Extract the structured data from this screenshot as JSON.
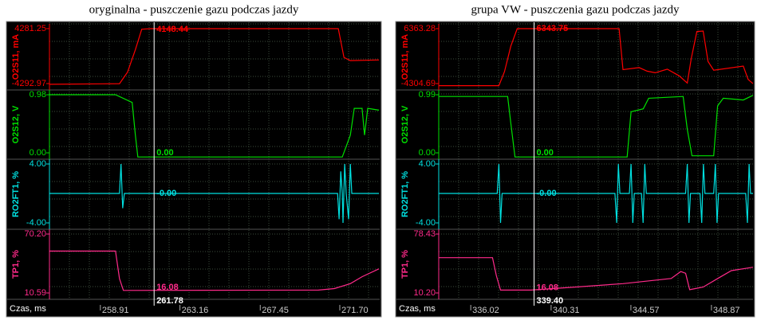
{
  "panels": [
    {
      "title": "oryginalna - puszczenie gazu podczas jazdy",
      "x_label": "Czas, ms",
      "xlim": [
        256.19,
        273.83
      ],
      "xticks": [
        258.91,
        263.16,
        267.45,
        {
          "value": 271.7,
          "label": "271.70"
        }
      ],
      "cursor": 261.78,
      "channels": [
        {
          "label": "O2S11, mA",
          "color": "#ff0000",
          "ylim": [
            -4292.97,
            4281.25
          ],
          "yticks": [
            -4292.97,
            4281.25
          ],
          "cursor_value": 4148.44,
          "x": [
            256.19,
            259.93,
            260.36,
            260.78,
            261.12,
            261.63,
            271.62,
            271.92,
            272.26,
            273.79
          ],
          "values": [
            -4400,
            -4300,
            -2500,
            1000,
            4200,
            4281,
            4281,
            -200,
            -700,
            -600
          ]
        },
        {
          "label": "O2S12, V",
          "color": "#00e000",
          "ylim": [
            0,
            0.98
          ],
          "yticks": [
            {
              "value": 0,
              "label": "0.00"
            },
            0.98
          ],
          "cursor_value": {
            "value": 0,
            "label": "0.00"
          },
          "x": [
            256.19,
            259.72,
            260.61,
            260.78,
            260.91,
            271.83,
            272.26,
            272.47,
            272.89,
            273.02,
            273.19,
            273.79
          ],
          "values": [
            0.98,
            0.98,
            0.85,
            0.3,
            -0.07,
            -0.07,
            0.3,
            0.75,
            0.75,
            0.3,
            0.75,
            0.72
          ]
        },
        {
          "label": "RO2FT1, %",
          "color": "#00e0e0",
          "ylim": [
            -4,
            4
          ],
          "yticks": [
            {
              "value": -4,
              "label": "-4.00"
            },
            {
              "value": 4,
              "label": "4.00"
            }
          ],
          "cursor_value": {
            "value": 0,
            "label": "-0.00"
          },
          "x": [
            256.19,
            259.93,
            260.01,
            260.1,
            260.19,
            271.58,
            271.66,
            271.75,
            271.83,
            271.87,
            271.96,
            272.04,
            272.17,
            272.26,
            272.34,
            273.79
          ],
          "values": [
            0,
            0,
            4,
            -2,
            0,
            0,
            -3.5,
            3,
            0,
            -4,
            4,
            0,
            -3.5,
            4,
            0,
            0
          ]
        },
        {
          "label": "TP1, %",
          "color": "#ff2a8a",
          "ylim": [
            10.59,
            70.2
          ],
          "yticks": [
            10.59,
            {
              "value": 70.2,
              "label": "70.20"
            }
          ],
          "cursor_value": 16.08,
          "x": [
            256.19,
            259.72,
            259.93,
            260.14,
            270.56,
            271.41,
            272.26,
            272.89,
            273.79
          ],
          "values": [
            53,
            53,
            25,
            13.2,
            13.5,
            15,
            20,
            27,
            35
          ]
        }
      ]
    },
    {
      "title": "grupa VW - puszczenia gazu podczas jazdy",
      "x_label": "Czas, ms",
      "xlim": [
        334.31,
        351.09
      ],
      "xticks": [
        336.02,
        340.31,
        344.57,
        348.87
      ],
      "cursor": {
        "value": 339.4,
        "label": "339.40"
      },
      "channels": [
        {
          "label": "O2S11, mA",
          "color": "#ff0000",
          "ylim": [
            -4304.69,
            6363.28
          ],
          "yticks": [
            -4304.69,
            6363.28
          ],
          "cursor_value": 6343.75,
          "x": [
            334.31,
            337.52,
            337.82,
            338.16,
            338.5,
            343.94,
            344.15,
            345.01,
            345.44,
            345.87,
            346.51,
            347.15,
            347.58,
            347.79,
            348.09,
            348.43,
            348.69,
            348.99,
            350.57,
            350.83,
            351.09
          ],
          "values": [
            -4700,
            -4700,
            -2000,
            3000,
            6363,
            6363,
            -1600,
            -1200,
            -1900,
            -2200,
            -1500,
            -2800,
            -4200,
            500,
            5800,
            5900,
            0,
            -1700,
            -900,
            -3500,
            -4300
          ]
        },
        {
          "label": "O2S12, V",
          "color": "#00e000",
          "ylim": [
            0,
            0.99
          ],
          "yticks": [
            {
              "value": 0,
              "label": "0.00"
            },
            0.99
          ],
          "cursor_value": {
            "value": 0,
            "label": "0.00"
          },
          "x": [
            334.31,
            337.99,
            338.16,
            338.38,
            344.37,
            344.58,
            345.23,
            345.52,
            347.36,
            347.58,
            347.83,
            348.99,
            349.2,
            349.5,
            350.57,
            351.09
          ],
          "values": [
            0.96,
            0.96,
            0.5,
            -0.07,
            -0.07,
            0.7,
            0.75,
            0.93,
            0.96,
            0.4,
            -0.05,
            -0.05,
            0.8,
            0.93,
            0.9,
            0.98
          ]
        },
        {
          "label": "RO2FT1, %",
          "color": "#00e0e0",
          "ylim": [
            -4,
            4
          ],
          "yticks": [
            {
              "value": -4,
              "label": "-4.00"
            },
            {
              "value": 4,
              "label": "4.00"
            }
          ],
          "cursor_value": {
            "value": 0,
            "label": "-0.00"
          },
          "x": [
            334.31,
            337.43,
            337.52,
            337.61,
            337.69,
            343.72,
            343.81,
            343.9,
            343.98,
            344.49,
            344.58,
            344.67,
            344.75,
            345.13,
            345.22,
            345.31,
            345.39,
            347.49,
            347.58,
            347.67,
            347.75,
            348.26,
            348.35,
            348.44,
            348.52,
            348.99,
            349.08,
            349.17,
            349.25,
            350.7,
            350.79,
            350.88,
            350.96,
            351.09
          ],
          "values": [
            0,
            0,
            4,
            -4,
            0,
            0,
            -4,
            4,
            0,
            0,
            4,
            -4,
            0,
            0,
            -4,
            4,
            0,
            0,
            4,
            -4,
            0,
            0,
            -4,
            4,
            0,
            0,
            4,
            -4,
            0,
            0,
            -4,
            4,
            0,
            0
          ]
        },
        {
          "label": "TP1, %",
          "color": "#ff2a8a",
          "ylim": [
            10.2,
            78.43
          ],
          "yticks": [
            {
              "value": 10.2,
              "label": "10.20"
            },
            78.43
          ],
          "cursor_value": 16.08,
          "x": [
            334.31,
            337.18,
            337.39,
            337.61,
            339.23,
            341.59,
            344.15,
            346.72,
            347.23,
            347.49,
            347.71,
            348.43,
            349.29,
            349.93,
            351.09
          ],
          "values": [
            51,
            51,
            30,
            13.5,
            13.5,
            17,
            21,
            27,
            35,
            33,
            14,
            17,
            28,
            36,
            40
          ]
        }
      ]
    }
  ]
}
